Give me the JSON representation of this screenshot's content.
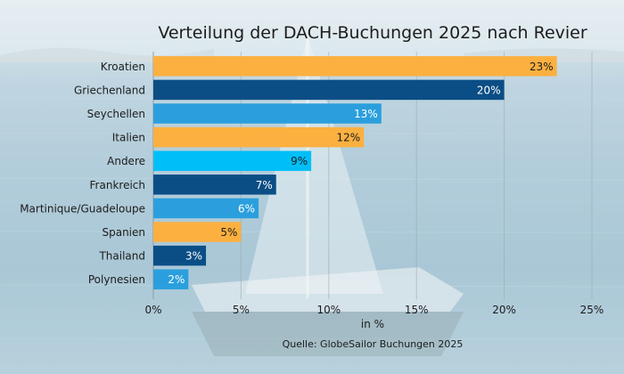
{
  "chart_data": {
    "type": "bar",
    "orientation": "horizontal",
    "title": "Verteilung der DACH-Buchungen 2025 nach Revier",
    "categories": [
      "Kroatien",
      "Griechenland",
      "Seychellen",
      "Italien",
      "Andere",
      "Frankreich",
      "Martinique/Guadeloupe",
      "Spanien",
      "Thailand",
      "Polynesien"
    ],
    "values": [
      23,
      20,
      13,
      12,
      9,
      7,
      6,
      5,
      3,
      2
    ],
    "value_labels": [
      "23%",
      "20%",
      "13%",
      "12%",
      "9%",
      "7%",
      "6%",
      "5%",
      "3%",
      "2%"
    ],
    "bar_colors": [
      "#fbb040",
      "#0b4e86",
      "#2b9fdd",
      "#fbb040",
      "#00bff8",
      "#0b4e86",
      "#2b9fdd",
      "#fbb040",
      "#0b4e86",
      "#2b9fdd"
    ],
    "label_colors": [
      "#1c1c1c",
      "#ffffff",
      "#ffffff",
      "#1c1c1c",
      "#1c1c1c",
      "#ffffff",
      "#ffffff",
      "#1c1c1c",
      "#ffffff",
      "#ffffff"
    ],
    "xlim": [
      0,
      25
    ],
    "xticks": [
      0,
      5,
      10,
      15,
      20,
      25
    ],
    "xtick_labels": [
      "0%",
      "5%",
      "10%",
      "15%",
      "20%",
      "25%"
    ],
    "xlabel": "in %",
    "ylabel": "",
    "grid": true,
    "source": "Quelle: GlobeSailor Buchungen 2025"
  }
}
